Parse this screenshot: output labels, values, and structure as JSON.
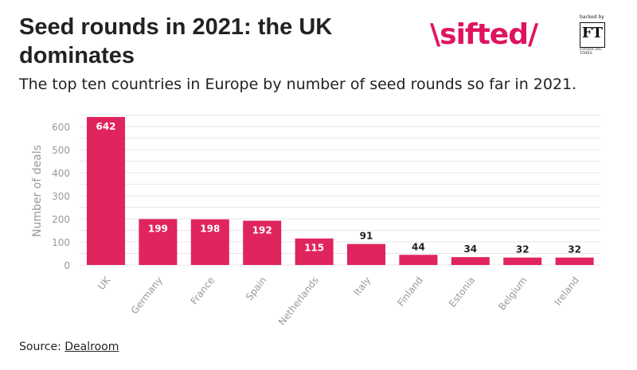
{
  "header": {
    "title": "Seed rounds in 2021: the UK dominates",
    "subtitle": "The top ten countries in Europe by number of seed rounds so far in 2021."
  },
  "logo": {
    "brand": "\\sifted/",
    "backed_by": "backed by",
    "ft_mark": "FT",
    "ft_name": "FINANCIAL TIMES"
  },
  "source": {
    "label": "Source:",
    "link_text": "Dealroom"
  },
  "colors": {
    "bar": "#e0245e",
    "grid": "#e6e6e6",
    "axis_text": "#999999",
    "brand": "#e0135f"
  },
  "chart_data": {
    "type": "bar",
    "title": "Seed rounds in 2021: the UK dominates",
    "subtitle": "The top ten countries in Europe by number of seed rounds so far in 2021.",
    "xlabel": "",
    "ylabel": "Number of deals",
    "categories": [
      "UK",
      "Germany",
      "France",
      "Spain",
      "Netherlands",
      "Italy",
      "Finland",
      "Estonia",
      "Belgium",
      "Ireland"
    ],
    "values": [
      642,
      199,
      198,
      192,
      115,
      91,
      44,
      34,
      32,
      32
    ],
    "labels": [
      "642",
      "199",
      "198",
      "192",
      "115",
      "91",
      "44",
      "34",
      "32",
      "32"
    ],
    "yticks": [
      "0",
      "100",
      "200",
      "300",
      "400",
      "500",
      "600"
    ],
    "ylim": [
      0,
      650
    ],
    "grid": true,
    "legend": "none"
  }
}
